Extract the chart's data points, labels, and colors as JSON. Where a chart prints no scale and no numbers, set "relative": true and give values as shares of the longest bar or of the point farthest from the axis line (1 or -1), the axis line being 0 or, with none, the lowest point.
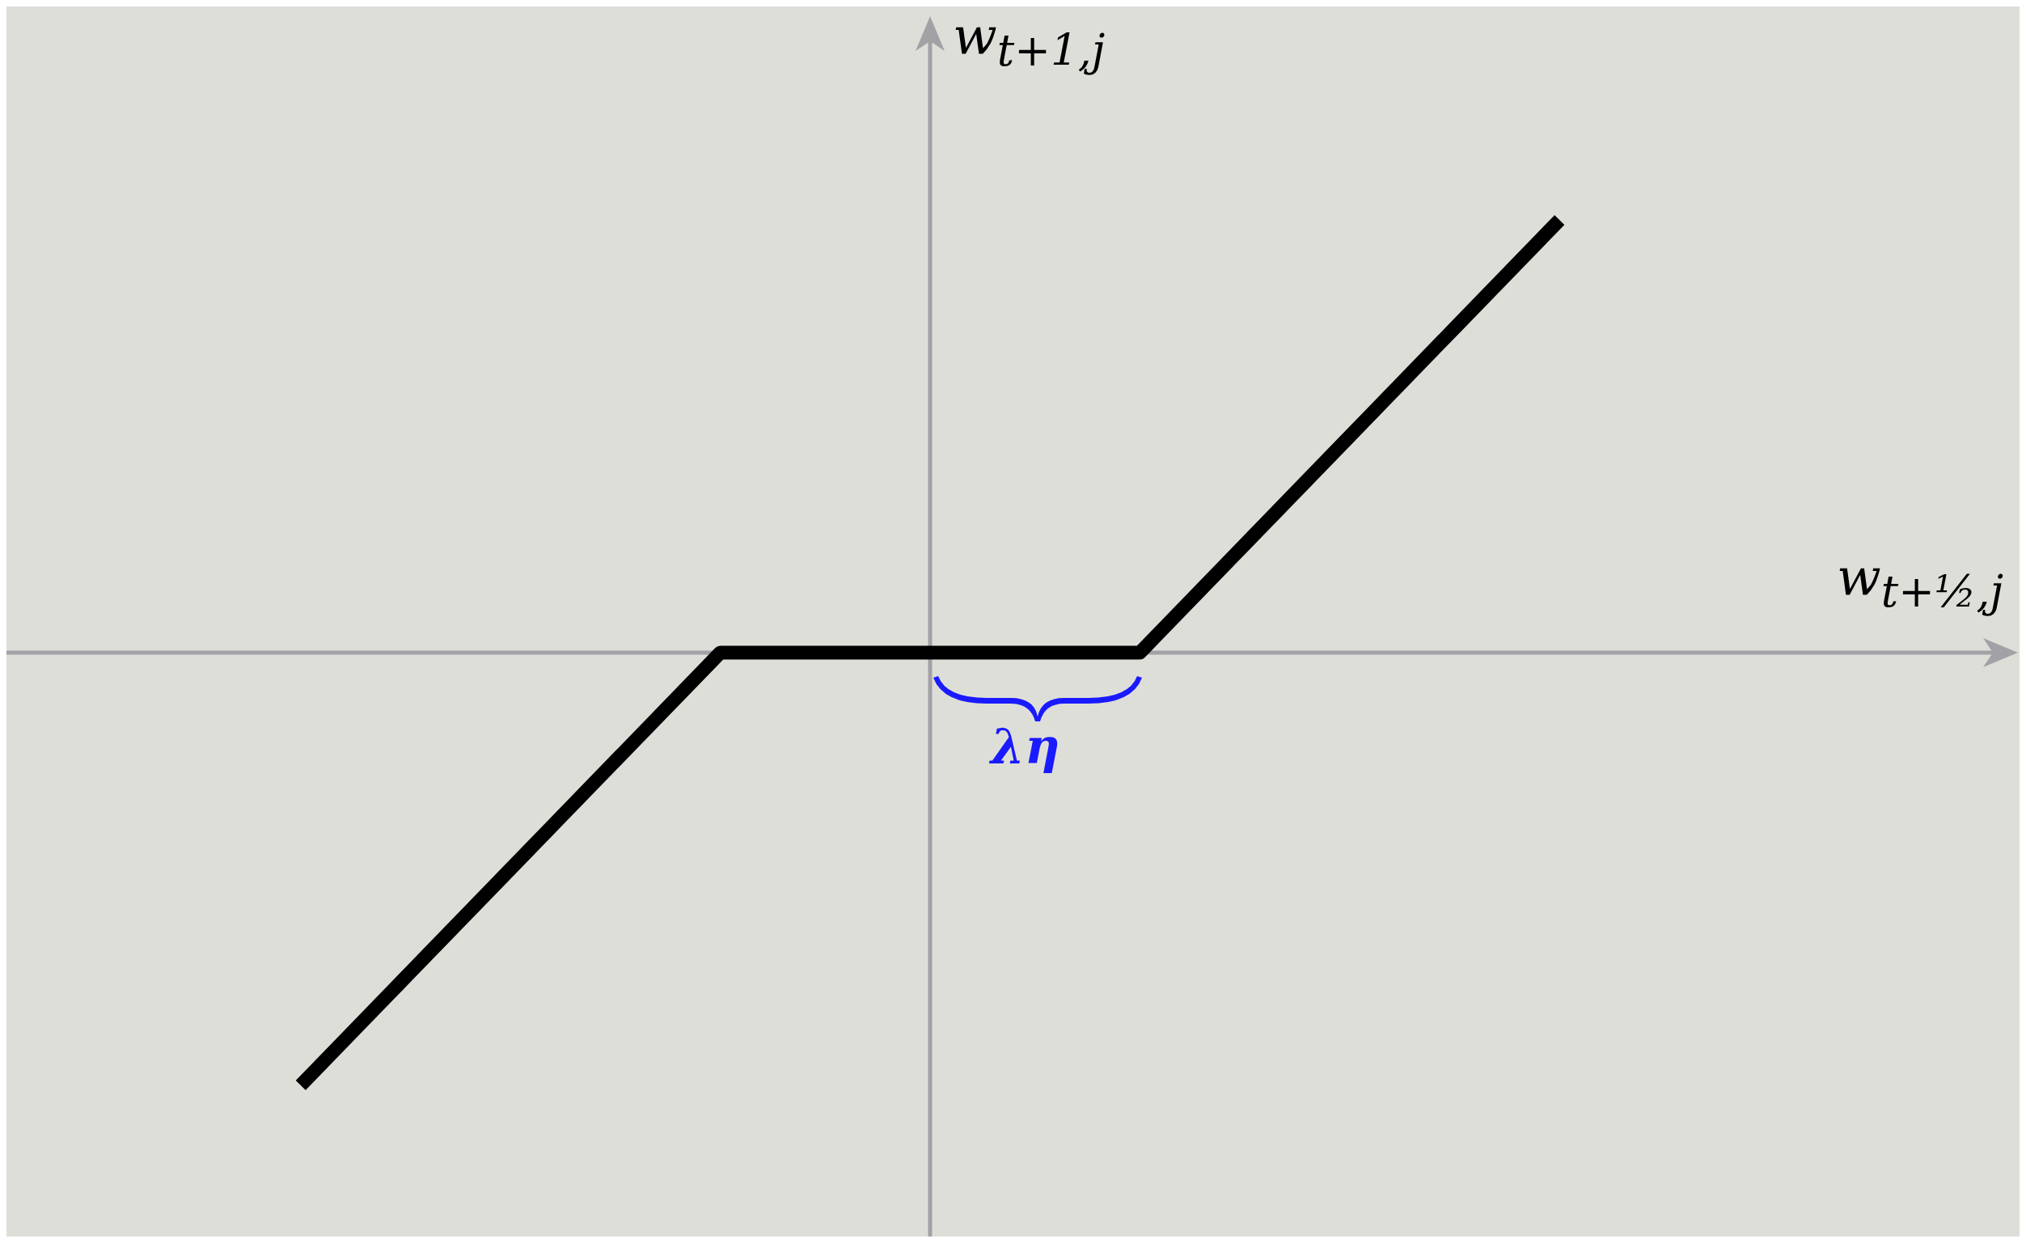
{
  "chart_data": {
    "type": "line",
    "relative": true,
    "xlabel": "w$_{t+½,j}$",
    "ylabel": "w$_{t+1,j}$",
    "annotations": [
      "λη"
    ],
    "categories": [
      null,
      null,
      null,
      null,
      null,
      null,
      null,
      null,
      null,
      null,
      null,
      null,
      null
    ],
    "series": [
      {
        "color": "#000000",
        "values": [
          -1,
          -0.75,
          -0.5,
          -0.25,
          0,
          0,
          0,
          0,
          0,
          0.25,
          0.5,
          0.75,
          1
        ]
      }
    ]
  }
}
